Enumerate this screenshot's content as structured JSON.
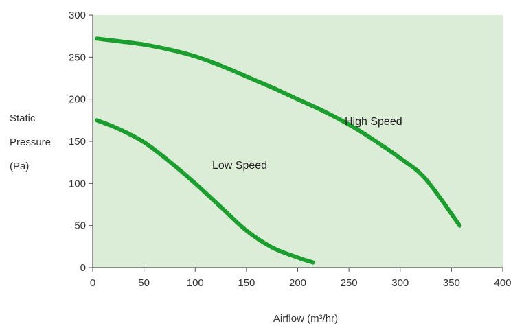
{
  "chart_data": {
    "type": "line",
    "title": "",
    "xlabel": "Airflow (m³/hr)",
    "ylabel_lines": [
      "Static",
      "Pressure",
      "(Pa)"
    ],
    "xlim": [
      0,
      400
    ],
    "ylim": [
      0,
      300
    ],
    "x_ticks": [
      0,
      50,
      100,
      150,
      200,
      250,
      300,
      350,
      400
    ],
    "y_ticks": [
      0,
      50,
      100,
      150,
      200,
      250,
      300
    ],
    "grid": false,
    "legend": "none",
    "colors": {
      "plot_background": "#dcedd7",
      "line": "#1a9e2e",
      "axis": "#555555"
    },
    "series": [
      {
        "name": "High Speed",
        "x": [
          4,
          25,
          50,
          75,
          100,
          125,
          150,
          175,
          200,
          225,
          250,
          275,
          300,
          325,
          358
        ],
        "y": [
          272,
          269,
          265,
          259,
          251,
          240,
          227,
          214,
          200,
          186,
          170,
          151,
          130,
          105,
          50
        ]
      },
      {
        "name": "Low Speed",
        "x": [
          4,
          25,
          50,
          75,
          100,
          125,
          150,
          175,
          200,
          215
        ],
        "y": [
          175,
          165,
          149,
          126,
          100,
          72,
          44,
          24,
          12,
          6
        ]
      }
    ]
  }
}
